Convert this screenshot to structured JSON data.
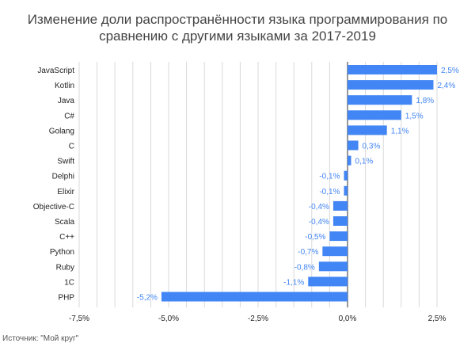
{
  "chart_data": {
    "type": "bar",
    "orientation": "horizontal",
    "title_lines": [
      "Изменение доли распространённости языка программирования по",
      "сравнению с другими языками за 2017-2019"
    ],
    "categories": [
      "JavaScript",
      "Kotlin",
      "Java",
      "C#",
      "Golang",
      "C",
      "Swift",
      "Delphi",
      "Elixir",
      "Objective-C",
      "Scala",
      "C++",
      "Python",
      "Ruby",
      "1C",
      "PHP"
    ],
    "values": [
      2.5,
      2.4,
      1.8,
      1.5,
      1.1,
      0.3,
      0.1,
      -0.1,
      -0.1,
      -0.4,
      -0.4,
      -0.5,
      -0.7,
      -0.8,
      -1.1,
      -5.2
    ],
    "value_labels": [
      "2,5%",
      "2,4%",
      "1,8%",
      "1,5%",
      "1,1%",
      "0,3%",
      "0,1%",
      "-0,1%",
      "-0,1%",
      "-0,4%",
      "-0,4%",
      "-0,5%",
      "-0,7%",
      "-0,8%",
      "-1,1%",
      "-5,2%"
    ],
    "xlim": [
      -7.5,
      2.5
    ],
    "x_ticks": [
      -7.5,
      -5.0,
      -2.5,
      0.0,
      2.5
    ],
    "x_tick_labels": [
      "-7,5%",
      "-5,0%",
      "-2,5%",
      "0,0%",
      "2,5%"
    ],
    "grid": true,
    "legend": "none",
    "xlabel": "",
    "ylabel": ""
  },
  "source_text": "Источник: \"Мой круг\"",
  "colors": {
    "bar": "#4285f4",
    "value_label": "#4285f4",
    "grid": "#d9d9d9",
    "zero_line": "#333333",
    "text": "#222222"
  }
}
